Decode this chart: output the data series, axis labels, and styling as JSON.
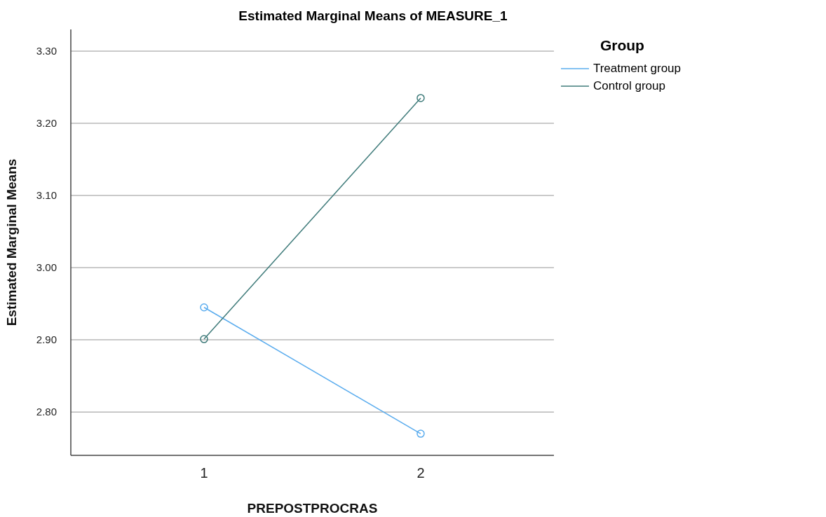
{
  "chart_data": {
    "type": "line",
    "title": "Estimated Marginal Means of MEASURE_1",
    "xlabel": "PREPOSTPROCRAS",
    "ylabel": "Estimated Marginal Means",
    "legend_title": "Group",
    "categories": [
      "1",
      "2"
    ],
    "series": [
      {
        "name": "Treatment group",
        "color": "#5aacee",
        "values": [
          2.945,
          2.77
        ]
      },
      {
        "name": "Control group",
        "color": "#3f7b7a",
        "values": [
          2.901,
          3.235
        ]
      }
    ],
    "ylim": [
      2.74,
      3.33
    ],
    "yticks": [
      {
        "value": 2.8,
        "label": "2.80"
      },
      {
        "value": 2.9,
        "label": "2.90"
      },
      {
        "value": 3.0,
        "label": "3.00"
      },
      {
        "value": 3.1,
        "label": "3.10"
      },
      {
        "value": 3.2,
        "label": "3.20"
      },
      {
        "value": 3.3,
        "label": "3.30"
      }
    ],
    "grid": "y",
    "legend": "top right",
    "marker": "circle",
    "line_style": "solid"
  }
}
